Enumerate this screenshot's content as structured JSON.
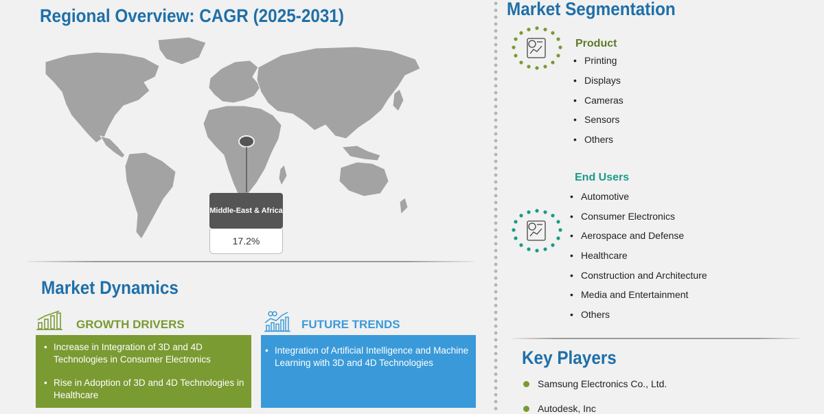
{
  "regional": {
    "title": "Regional Overview: CAGR (2025-2031)",
    "callout": {
      "region": "Middle-East & Africa",
      "cagr": "17.2%"
    }
  },
  "segmentation": {
    "title": "Market Segmentation",
    "product": {
      "heading": "Product",
      "items": [
        "Printing",
        "Displays",
        "Cameras",
        "Sensors",
        "Others"
      ]
    },
    "end_users": {
      "heading": "End Users",
      "items": [
        "Automotive",
        "Consumer Electronics",
        "Aerospace and Defense",
        "Healthcare",
        "Construction and Architecture",
        "Media and Entertainment",
        "Others"
      ]
    }
  },
  "dynamics": {
    "title": "Market Dynamics",
    "drivers": {
      "heading": "GROWTH DRIVERS",
      "items": [
        "Increase in Integration of 3D and 4D Technologies in Consumer Electronics",
        "Rise in Adoption of 3D and 4D Technologies in Healthcare"
      ]
    },
    "trends": {
      "heading": "FUTURE TRENDS",
      "items": [
        "Integration of Artificial Intelligence and Machine Learning with 3D and 4D Technologies"
      ]
    }
  },
  "key_players": {
    "title": "Key Players",
    "items": [
      "Samsung Electronics Co., Ltd.",
      "Autodesk, Inc"
    ]
  },
  "colors": {
    "title_blue": "#1f6fa8",
    "drivers_green": "#7a9a32",
    "trends_blue": "#3a9ad9",
    "enduser_teal": "#1a9a86",
    "product_green": "#5e7a2a",
    "map_gray": "#a3a3a3",
    "callout_dark": "#555555"
  },
  "icons": {
    "product": "product-chart-icon",
    "end_users": "enduser-chart-icon",
    "drivers": "growth-bars-icon",
    "trends": "trend-chart-icon"
  }
}
